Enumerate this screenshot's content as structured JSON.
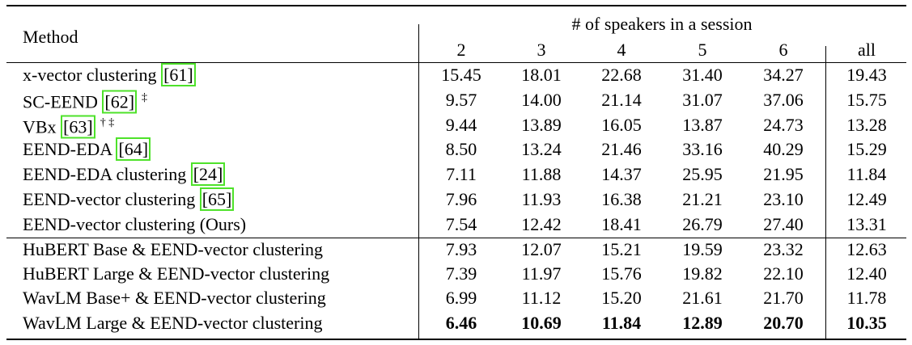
{
  "header": {
    "method": "Method",
    "group": "# of speakers in a session",
    "columns": [
      "2",
      "3",
      "4",
      "5",
      "6",
      "all"
    ]
  },
  "row_groups": [
    [
      {
        "method": "x-vector clustering",
        "ref": "[61]",
        "values": [
          "15.45",
          "18.01",
          "22.68",
          "31.40",
          "34.27",
          "19.43"
        ]
      },
      {
        "method": "SC-EEND",
        "ref": "[62]",
        "notes": "‡",
        "values": [
          "9.57",
          "14.00",
          "21.14",
          "31.07",
          "37.06",
          "15.75"
        ]
      },
      {
        "method": "VBx",
        "ref": "[63]",
        "notes": "† ‡",
        "values": [
          "9.44",
          "13.89",
          "16.05",
          "13.87",
          "24.73",
          "13.28"
        ]
      },
      {
        "method": "EEND-EDA",
        "ref": "[64]",
        "values": [
          "8.50",
          "13.24",
          "21.46",
          "33.16",
          "40.29",
          "15.29"
        ]
      },
      {
        "method": "EEND-EDA clustering",
        "ref": "[24]",
        "values": [
          "7.11",
          "11.88",
          "14.37",
          "25.95",
          "21.95",
          "11.84"
        ]
      },
      {
        "method": "EEND-vector clustering",
        "ref": "[65]",
        "values": [
          "7.96",
          "11.93",
          "16.38",
          "21.21",
          "23.10",
          "12.49"
        ]
      },
      {
        "method": "EEND-vector clustering (Ours)",
        "values": [
          "7.54",
          "12.42",
          "18.41",
          "26.79",
          "27.40",
          "13.31"
        ]
      }
    ],
    [
      {
        "method": "HuBERT Base & EEND-vector clustering",
        "values": [
          "7.93",
          "12.07",
          "15.21",
          "19.59",
          "23.32",
          "12.63"
        ]
      },
      {
        "method": "HuBERT Large & EEND-vector clustering",
        "values": [
          "7.39",
          "11.97",
          "15.76",
          "19.82",
          "22.10",
          "12.40"
        ]
      },
      {
        "method": "WavLM Base+ & EEND-vector clustering",
        "values": [
          "6.99",
          "11.12",
          "15.20",
          "21.61",
          "21.70",
          "11.78"
        ]
      },
      {
        "method": "WavLM Large & EEND-vector clustering",
        "bold": true,
        "values": [
          "6.46",
          "10.69",
          "11.84",
          "12.89",
          "20.70",
          "10.35"
        ]
      }
    ]
  ]
}
